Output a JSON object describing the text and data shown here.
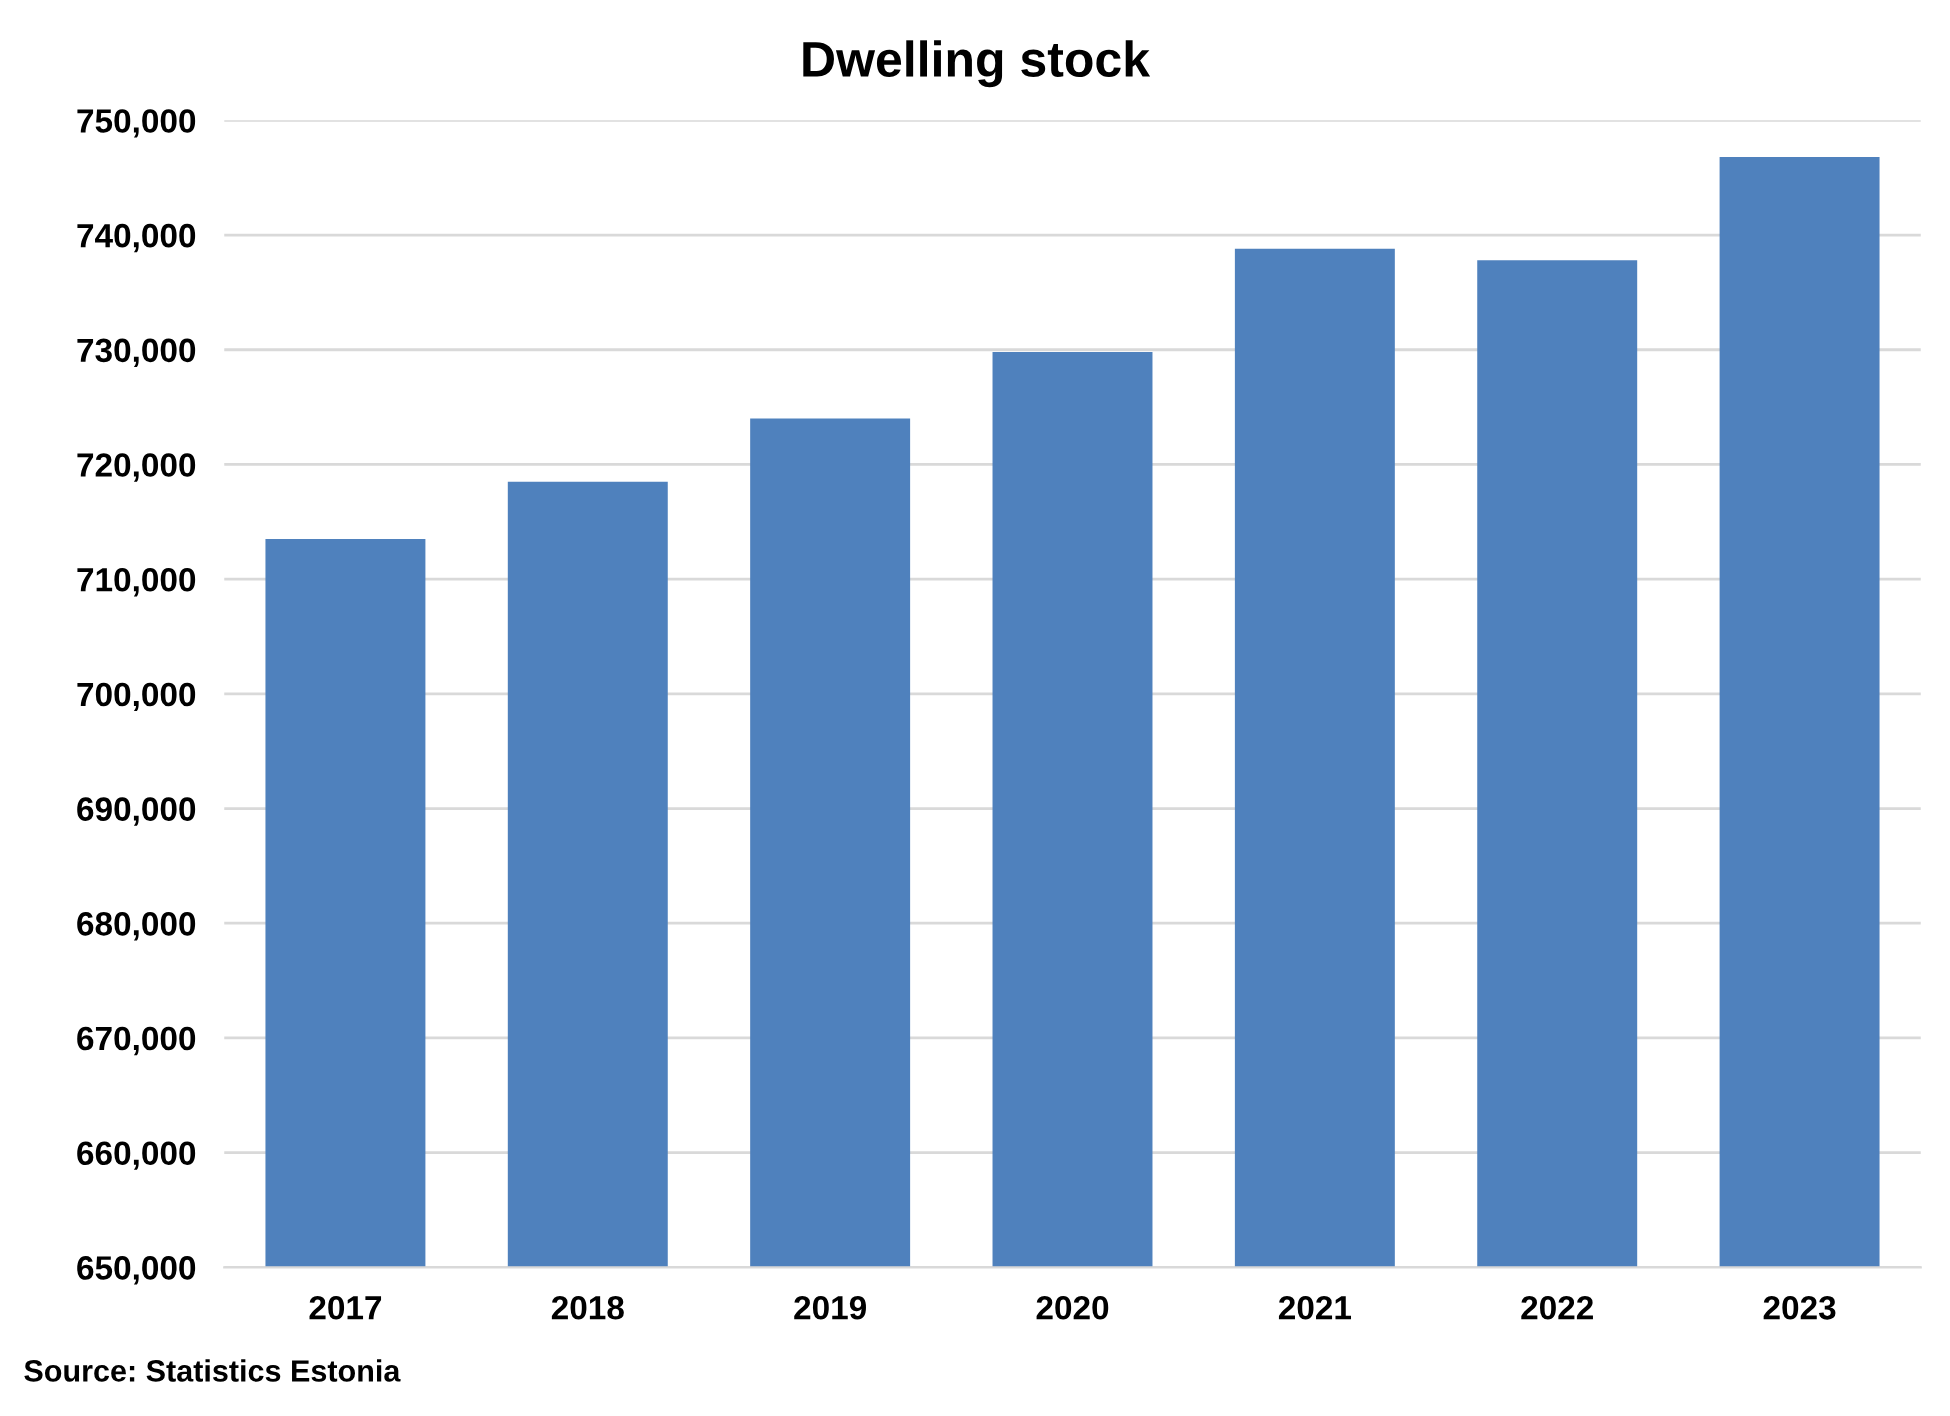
{
  "chart_data": {
    "type": "bar",
    "title": "Dwelling stock",
    "categories": [
      "2017",
      "2018",
      "2019",
      "2020",
      "2021",
      "2022",
      "2023"
    ],
    "values": [
      713500,
      718500,
      724000,
      729800,
      738800,
      737800,
      746800
    ],
    "color": "#4f81bd",
    "ylim": [
      650000,
      750000
    ],
    "yticks": [
      {
        "value": 650000,
        "label": "650,000"
      },
      {
        "value": 660000,
        "label": "660,000"
      },
      {
        "value": 670000,
        "label": "670,000"
      },
      {
        "value": 680000,
        "label": "680,000"
      },
      {
        "value": 690000,
        "label": "690,000"
      },
      {
        "value": 700000,
        "label": "700,000"
      },
      {
        "value": 710000,
        "label": "710,000"
      },
      {
        "value": 720000,
        "label": "720,000"
      },
      {
        "value": 730000,
        "label": "730,000"
      },
      {
        "value": 740000,
        "label": "740,000"
      },
      {
        "value": 750000,
        "label": "750,000"
      }
    ],
    "grid": "y",
    "annotations": [
      "Source: Statistics Estonia"
    ]
  }
}
